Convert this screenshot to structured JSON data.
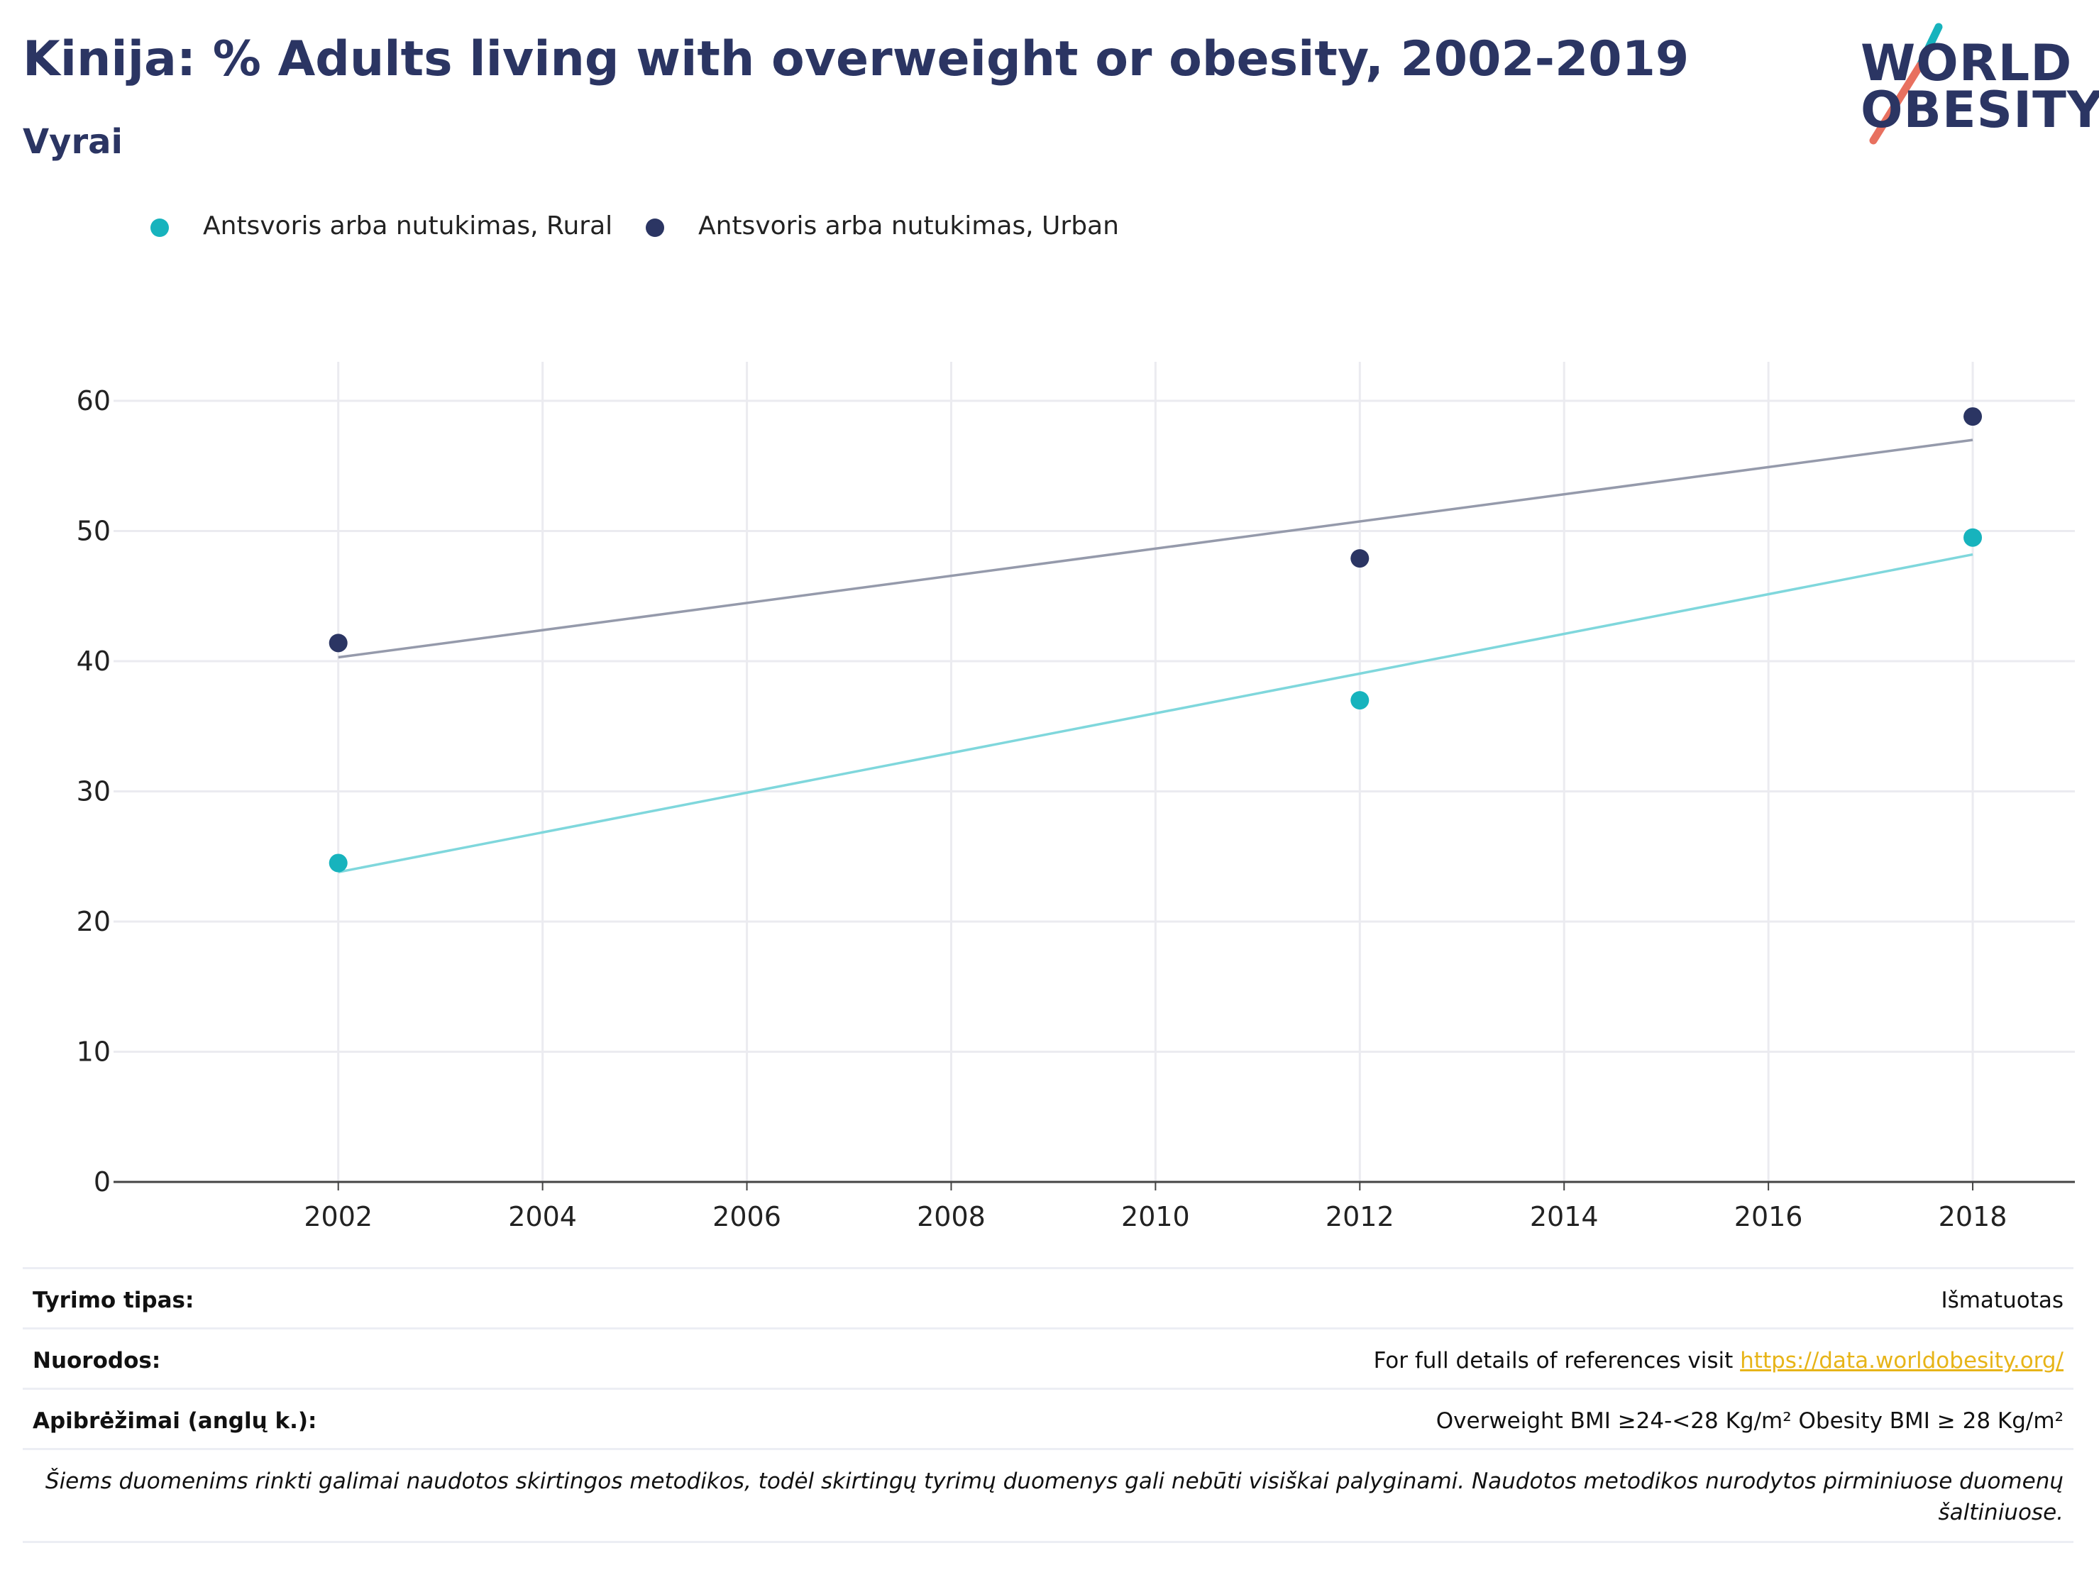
{
  "title": "Kinija: % Adults living with overweight or obesity, 2002-2019",
  "subtitle": "Vyrai",
  "logo": {
    "line1": "WORLD",
    "line2": "OBESITY",
    "icon": "world-obesity-slash-logo"
  },
  "colors": {
    "rural": "#17b3bd",
    "urban": "#2b3563",
    "rural_trend": "#7fd7dc",
    "urban_trend": "#959aab",
    "grid": "#ebebf0",
    "axis": "#444444",
    "link": "#e7b418"
  },
  "legend": [
    {
      "label": "Antsvoris arba nutukimas, Rural"
    },
    {
      "label": "Antsvoris arba nutukimas, Urban"
    }
  ],
  "chart_data": {
    "type": "scatter",
    "x_ticks": [
      "2002",
      "2004",
      "2006",
      "2008",
      "2010",
      "2012",
      "2014",
      "2016",
      "2018"
    ],
    "y_ticks": [
      "0",
      "10",
      "20",
      "30",
      "40",
      "50",
      "60"
    ],
    "xlim": [
      1999.8,
      2019.0
    ],
    "ylim": [
      0,
      63
    ],
    "grid": true,
    "legend_position": "top-left",
    "series": [
      {
        "name": "Antsvoris arba nutukimas, Rural",
        "points": [
          {
            "x": 2002,
            "y": 24.5
          },
          {
            "x": 2012,
            "y": 37.0
          },
          {
            "x": 2018,
            "y": 49.5
          }
        ],
        "trend": [
          {
            "x": 2002,
            "y": 23.8
          },
          {
            "x": 2018,
            "y": 48.2
          }
        ]
      },
      {
        "name": "Antsvoris arba nutukimas, Urban",
        "points": [
          {
            "x": 2002,
            "y": 41.4
          },
          {
            "x": 2012,
            "y": 47.9
          },
          {
            "x": 2018,
            "y": 58.8
          }
        ],
        "trend": [
          {
            "x": 2002,
            "y": 40.3
          },
          {
            "x": 2018,
            "y": 57.0
          }
        ]
      }
    ]
  },
  "footer": {
    "rows": [
      {
        "key": "Tyrimo tipas:",
        "value": "Išmatuotas"
      },
      {
        "key": "Nuorodos:",
        "value": "For full details of references visit ",
        "link": "https://data.worldobesity.org/"
      },
      {
        "key": "Apibrėžimai (anglų k.):",
        "value": "Overweight BMI ≥24-<28 Kg/m² Obesity BMI ≥ 28 Kg/m²"
      }
    ],
    "note": "Šiems duomenims rinkti galimai naudotos skirtingos metodikos, todėl skirtingų tyrimų duomenys gali nebūti visiškai palyginami. Naudotos metodikos nurodytos pirminiuose duomenų šaltiniuose."
  }
}
